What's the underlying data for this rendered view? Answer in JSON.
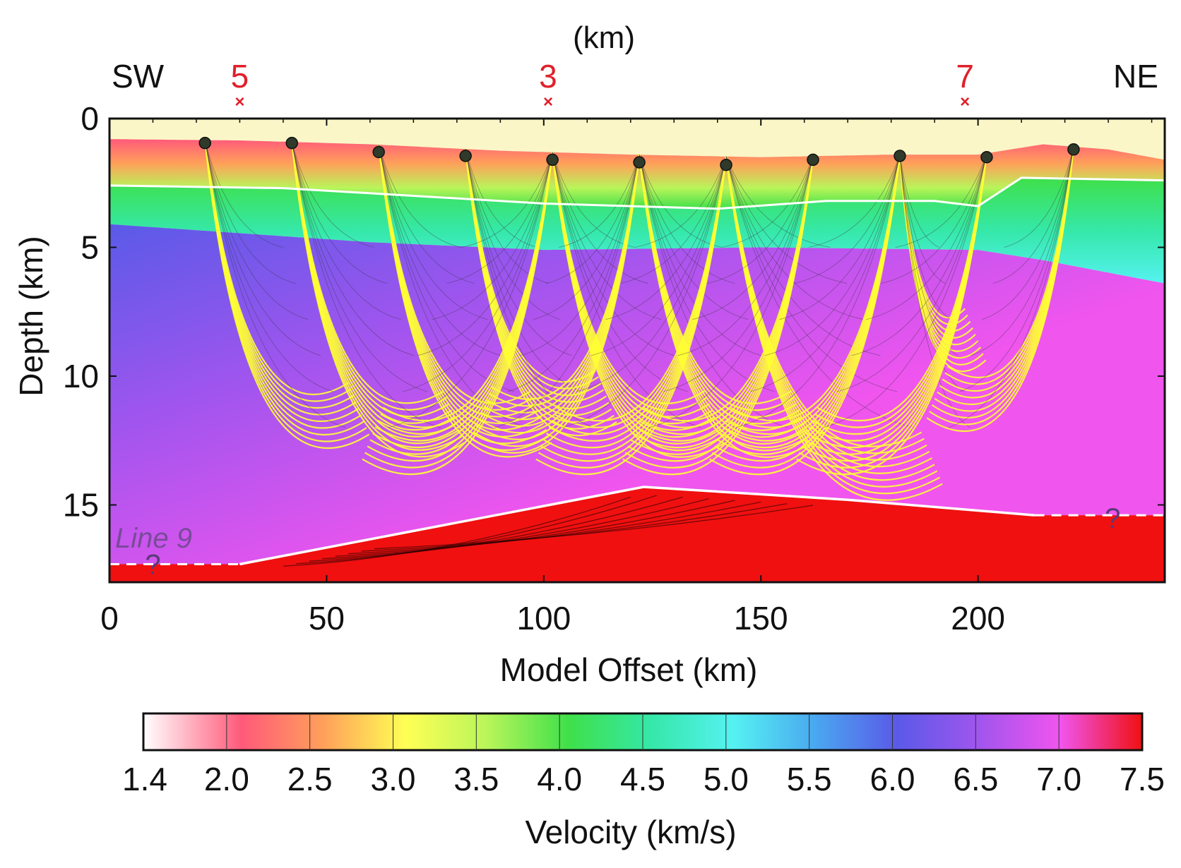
{
  "chart_data": {
    "type": "heatmap",
    "title": "(km)",
    "xlabel": "Model Offset (km)",
    "ylabel": "Depth (km)",
    "xlim": [
      0,
      243
    ],
    "ylim": [
      18,
      0
    ],
    "x_ticks": [
      "0",
      "50",
      "100",
      "150",
      "200"
    ],
    "x_tick_values": [
      0,
      50,
      100,
      150,
      200
    ],
    "y_ticks": [
      "0",
      "5",
      "10",
      "15"
    ],
    "y_tick_values": [
      0,
      5,
      10,
      15
    ],
    "direction_left": "SW",
    "direction_right": "NE",
    "crossing_lines": [
      {
        "label": "5",
        "x": 30
      },
      {
        "label": "3",
        "x": 101
      },
      {
        "label": "7",
        "x": 197
      }
    ],
    "line_label": "Line 9",
    "question_marks": [
      {
        "text": "?",
        "x": 10,
        "y": 17.3
      },
      {
        "text": "?",
        "x": 231,
        "y": 15.5
      }
    ],
    "receivers": [
      {
        "x": 22,
        "y": 0.95
      },
      {
        "x": 42,
        "y": 0.95
      },
      {
        "x": 62,
        "y": 1.3
      },
      {
        "x": 82,
        "y": 1.45
      },
      {
        "x": 102,
        "y": 1.6
      },
      {
        "x": 122,
        "y": 1.7
      },
      {
        "x": 142,
        "y": 1.8
      },
      {
        "x": 162,
        "y": 1.6
      },
      {
        "x": 182,
        "y": 1.45
      },
      {
        "x": 202,
        "y": 1.5
      },
      {
        "x": 222,
        "y": 1.2
      }
    ],
    "layers": {
      "seafloor": [
        [
          0,
          0.8
        ],
        [
          30,
          0.85
        ],
        [
          60,
          1.0
        ],
        [
          90,
          1.25
        ],
        [
          120,
          1.4
        ],
        [
          150,
          1.5
        ],
        [
          180,
          1.4
        ],
        [
          200,
          1.4
        ],
        [
          215,
          1.0
        ],
        [
          230,
          1.2
        ],
        [
          243,
          1.6
        ]
      ],
      "base_sediment": [
        [
          0,
          2.6
        ],
        [
          40,
          2.7
        ],
        [
          70,
          3.0
        ],
        [
          100,
          3.3
        ],
        [
          140,
          3.5
        ],
        [
          165,
          3.2
        ],
        [
          190,
          3.2
        ],
        [
          200,
          3.4
        ],
        [
          210,
          2.3
        ],
        [
          243,
          2.4
        ]
      ],
      "upper_crust_base": [
        [
          0,
          4.1
        ],
        [
          60,
          4.8
        ],
        [
          100,
          5.1
        ],
        [
          150,
          5.0
        ],
        [
          200,
          5.1
        ],
        [
          215,
          5.5
        ],
        [
          243,
          6.4
        ]
      ],
      "moho": [
        [
          0,
          17.3
        ],
        [
          30,
          17.3
        ],
        [
          123,
          14.3
        ],
        [
          170,
          14.8
        ],
        [
          213,
          15.4
        ],
        [
          243,
          15.4
        ]
      ]
    },
    "ray_fans": [
      {
        "x0": 22,
        "x1": 58
      },
      {
        "x0": 42,
        "x1": 80
      },
      {
        "x0": 62,
        "x1": 100
      },
      {
        "x0": 82,
        "x1": 115
      },
      {
        "x0": 102,
        "x1": 60
      },
      {
        "x0": 102,
        "x1": 140
      },
      {
        "x0": 122,
        "x1": 85
      },
      {
        "x0": 122,
        "x1": 160
      },
      {
        "x0": 142,
        "x1": 100
      },
      {
        "x0": 142,
        "x1": 190
      },
      {
        "x0": 162,
        "x1": 120
      },
      {
        "x0": 182,
        "x1": 140
      },
      {
        "x0": 182,
        "x1": 200
      },
      {
        "x0": 202,
        "x1": 160
      },
      {
        "x0": 222,
        "x1": 190
      }
    ],
    "colorbar": {
      "label": "Velocity (km/s)",
      "min": 1.4,
      "max": 7.5,
      "ticks": [
        "1.4",
        "2.0",
        "2.5",
        "3.0",
        "3.5",
        "4.0",
        "4.5",
        "5.0",
        "5.5",
        "6.0",
        "6.5",
        "7.0",
        "7.5"
      ],
      "colors": [
        {
          "v": 1.4,
          "c": "#ffffff"
        },
        {
          "v": 2.0,
          "c": "#ff5a7a"
        },
        {
          "v": 2.5,
          "c": "#ffa05a"
        },
        {
          "v": 3.0,
          "c": "#ffff55"
        },
        {
          "v": 3.5,
          "c": "#b8f55a"
        },
        {
          "v": 4.0,
          "c": "#3fe04a"
        },
        {
          "v": 4.5,
          "c": "#35e8a8"
        },
        {
          "v": 5.0,
          "c": "#55f2f2"
        },
        {
          "v": 5.5,
          "c": "#4aa8f0"
        },
        {
          "v": 6.0,
          "c": "#5a5ae8"
        },
        {
          "v": 6.5,
          "c": "#a055ee"
        },
        {
          "v": 7.0,
          "c": "#f055ee"
        },
        {
          "v": 7.5,
          "c": "#f01010"
        }
      ]
    }
  }
}
